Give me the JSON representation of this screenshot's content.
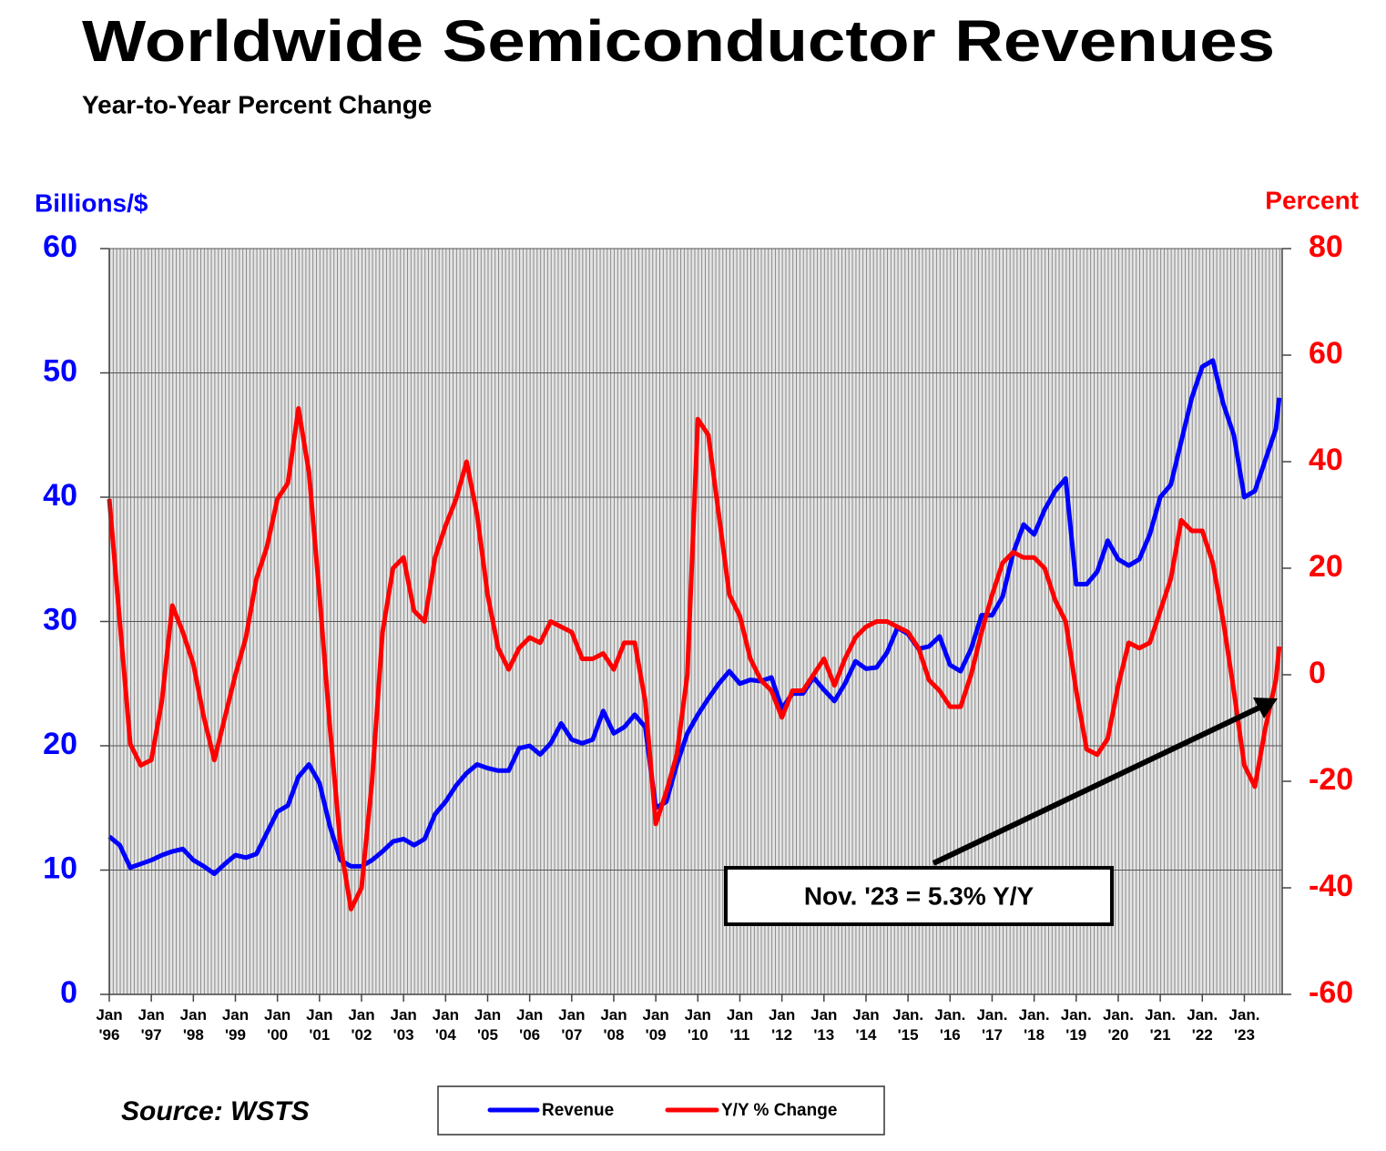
{
  "chart_data": {
    "type": "line",
    "title": "Worldwide Semiconductor Revenues",
    "subtitle": "Year-to-Year Percent Change",
    "y_label": "Billions/$",
    "y2_label": "Percent",
    "source": "Source: WSTS",
    "annotation": "Nov. '23 = 5.3% Y/Y",
    "x": [
      1996,
      1996.25,
      1996.5,
      1996.75,
      1997,
      1997.25,
      1997.5,
      1997.75,
      1998,
      1998.25,
      1998.5,
      1998.75,
      1999,
      1999.25,
      1999.5,
      1999.75,
      2000,
      2000.25,
      2000.5,
      2000.75,
      2001,
      2001.25,
      2001.5,
      2001.75,
      2002,
      2002.25,
      2002.5,
      2002.75,
      2003,
      2003.25,
      2003.5,
      2003.75,
      2004,
      2004.25,
      2004.5,
      2004.75,
      2005,
      2005.25,
      2005.5,
      2005.75,
      2006,
      2006.25,
      2006.5,
      2006.75,
      2007,
      2007.25,
      2007.5,
      2007.75,
      2008,
      2008.25,
      2008.5,
      2008.75,
      2009,
      2009.25,
      2009.5,
      2009.75,
      2010,
      2010.25,
      2010.5,
      2010.75,
      2011,
      2011.25,
      2011.5,
      2011.75,
      2012,
      2012.25,
      2012.5,
      2012.75,
      2013,
      2013.25,
      2013.5,
      2013.75,
      2014,
      2014.25,
      2014.5,
      2014.75,
      2015,
      2015.25,
      2015.5,
      2015.75,
      2016,
      2016.25,
      2016.5,
      2016.75,
      2017,
      2017.25,
      2017.5,
      2017.75,
      2018,
      2018.25,
      2018.5,
      2018.75,
      2019,
      2019.25,
      2019.5,
      2019.75,
      2020,
      2020.25,
      2020.5,
      2020.75,
      2021,
      2021.25,
      2021.5,
      2021.75,
      2022,
      2022.25,
      2022.5,
      2022.75,
      2023,
      2023.25,
      2023.5,
      2023.75,
      2023.83
    ],
    "series": [
      {
        "name": "Revenue",
        "color": "#0000ff",
        "axis": "y",
        "values": [
          12.7,
          12,
          10.2,
          10.5,
          10.8,
          11.2,
          11.5,
          11.7,
          10.8,
          10.3,
          9.7,
          10.5,
          11.2,
          11,
          11.3,
          13,
          14.7,
          15.2,
          17.5,
          18.5,
          17,
          13.5,
          10.8,
          10.3,
          10.3,
          10.8,
          11.5,
          12.3,
          12.5,
          12,
          12.5,
          14.5,
          15.5,
          16.8,
          17.8,
          18.5,
          18.2,
          18,
          18,
          19.8,
          20,
          19.3,
          20.2,
          21.8,
          20.5,
          20.2,
          20.5,
          22.8,
          21,
          21.5,
          22.5,
          21.5,
          15,
          15.5,
          18.5,
          21,
          22.5,
          23.8,
          25,
          26,
          25,
          25.3,
          25.2,
          25.5,
          23,
          24.2,
          24.2,
          25.5,
          24.5,
          23.6,
          25,
          26.8,
          26.2,
          26.3,
          27.5,
          29.5,
          29,
          27.8,
          28,
          28.8,
          26.5,
          26,
          27.8,
          30.5,
          30.5,
          32,
          35.5,
          37.8,
          37,
          39,
          40.5,
          41.5,
          33,
          33,
          34,
          36.5,
          35,
          34.5,
          35,
          37,
          40,
          41,
          44.5,
          48,
          50.5,
          51,
          47.5,
          45,
          40,
          40.5,
          43,
          45.5,
          48
        ]
      },
      {
        "name": "Y/Y % Change",
        "color": "#ff0000",
        "axis": "y2",
        "values": [
          33,
          10,
          -13,
          -17,
          -16,
          -5,
          13,
          8,
          2,
          -8,
          -16,
          -8,
          0,
          7,
          18,
          24,
          33,
          36,
          50,
          38,
          15,
          -10,
          -32,
          -44,
          -40,
          -20,
          8,
          20,
          22,
          12,
          10,
          22,
          28,
          33,
          40,
          30,
          15,
          5,
          1,
          5,
          7,
          6,
          10,
          9,
          8,
          3,
          3,
          4,
          1,
          6,
          6,
          -5,
          -28,
          -22,
          -15,
          0,
          48,
          45,
          30,
          15,
          11,
          3,
          -1,
          -3,
          -8,
          -3,
          -3,
          0,
          3,
          -2,
          3,
          7,
          9,
          10,
          10,
          9,
          8,
          5,
          -1,
          -3,
          -6,
          -6,
          0,
          8,
          15,
          21,
          23,
          22,
          22,
          20,
          14,
          10,
          -3,
          -14,
          -15,
          -12,
          -2,
          6,
          5,
          6,
          12,
          18,
          29,
          27,
          27,
          21,
          10,
          -3,
          -17,
          -21,
          -10,
          -1,
          5.3
        ]
      }
    ],
    "xlim": [
      1996,
      2023.9
    ],
    "xticks": [
      {
        "value": 1996,
        "label": "Jan '96"
      },
      {
        "value": 1997,
        "label": "Jan '97"
      },
      {
        "value": 1998,
        "label": "Jan '98"
      },
      {
        "value": 1999,
        "label": "Jan '99"
      },
      {
        "value": 2000,
        "label": "Jan '00"
      },
      {
        "value": 2001,
        "label": "Jan '01"
      },
      {
        "value": 2002,
        "label": "Jan '02"
      },
      {
        "value": 2003,
        "label": "Jan '03"
      },
      {
        "value": 2004,
        "label": "Jan '04"
      },
      {
        "value": 2005,
        "label": "Jan '05"
      },
      {
        "value": 2006,
        "label": "Jan '06"
      },
      {
        "value": 2007,
        "label": "Jan '07"
      },
      {
        "value": 2008,
        "label": "Jan '08"
      },
      {
        "value": 2009,
        "label": "Jan '09"
      },
      {
        "value": 2010,
        "label": "Jan '10"
      },
      {
        "value": 2011,
        "label": "Jan '11"
      },
      {
        "value": 2012,
        "label": "Jan '12"
      },
      {
        "value": 2013,
        "label": "Jan '13"
      },
      {
        "value": 2014,
        "label": "Jan '14"
      },
      {
        "value": 2015,
        "label": "Jan. '15"
      },
      {
        "value": 2016,
        "label": "Jan. '16"
      },
      {
        "value": 2017,
        "label": "Jan. '17"
      },
      {
        "value": 2018,
        "label": "Jan. '18"
      },
      {
        "value": 2019,
        "label": "Jan. '19"
      },
      {
        "value": 2020,
        "label": "Jan. '20"
      },
      {
        "value": 2021,
        "label": "Jan. '21"
      },
      {
        "value": 2022,
        "label": "Jan. '22"
      },
      {
        "value": 2023,
        "label": "Jan. '23"
      }
    ],
    "ylim": [
      0,
      60
    ],
    "yticks": [
      0,
      10,
      20,
      30,
      40,
      50,
      60
    ],
    "y2lim": [
      -60,
      80
    ],
    "y2ticks": [
      -60,
      -40,
      -20,
      0,
      20,
      40,
      60,
      80
    ],
    "grid": true,
    "legend": "bottom"
  }
}
